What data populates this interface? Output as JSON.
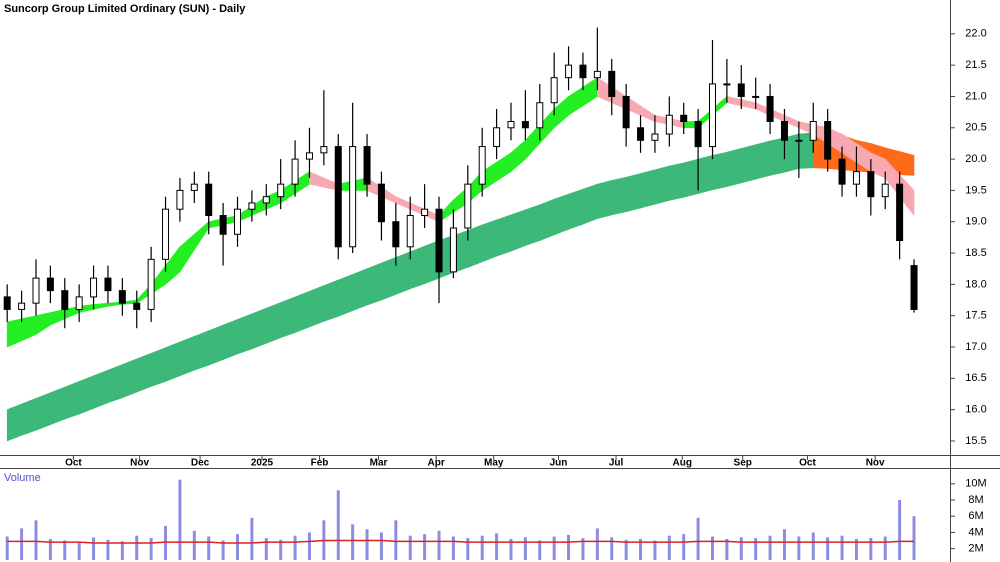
{
  "chart_data": [
    {
      "type": "candlestick",
      "title": "Suncorp Group Limited Ordinary (SUN) - Daily",
      "x": [
        0.5,
        1.5,
        2.5,
        3.5,
        4.5,
        5.5,
        6.5,
        7.5,
        8.5,
        9.5,
        10.5,
        11.5,
        12.5,
        13.5,
        14.5,
        15.5,
        16.5,
        17.5,
        18.5,
        19.5,
        20.5,
        21.5,
        22.5,
        23.5,
        24.5,
        25.5,
        26.5,
        27.5,
        28.5,
        29.5,
        30.5,
        31.5,
        32.5,
        33.5,
        34.5,
        35.5,
        36.5,
        37.5,
        38.5,
        39.5,
        40.5,
        41.5,
        42.5,
        43.5,
        44.5,
        45.5,
        46.5,
        47.5,
        48.5,
        49.5,
        50.5,
        51.5,
        52.5,
        53.5,
        54.5,
        55.5,
        56.5,
        57.5,
        58.5,
        59.5,
        60.5,
        61.5,
        62.5,
        63.5
      ],
      "open": [
        17.8,
        17.6,
        17.7,
        18.1,
        17.9,
        17.6,
        17.8,
        18.1,
        17.9,
        17.7,
        17.6,
        18.4,
        19.2,
        19.5,
        19.6,
        19.1,
        18.8,
        19.2,
        19.3,
        19.4,
        19.6,
        20.0,
        20.1,
        20.2,
        18.6,
        20.2,
        19.6,
        19.0,
        18.6,
        19.1,
        19.2,
        18.2,
        18.9,
        19.6,
        20.2,
        20.5,
        20.6,
        20.5,
        20.9,
        21.3,
        21.5,
        21.3,
        21.4,
        21.0,
        20.5,
        20.3,
        20.4,
        20.7,
        20.6,
        20.2,
        21.2,
        21.2,
        21.0,
        21.0,
        20.6,
        20.3,
        20.3,
        20.6,
        20.0,
        19.6,
        19.8,
        19.4,
        19.6,
        18.3
      ],
      "high": [
        18.0,
        17.9,
        18.4,
        18.3,
        18.1,
        18.0,
        18.3,
        18.3,
        18.1,
        17.9,
        18.6,
        19.4,
        19.7,
        19.8,
        19.8,
        19.3,
        19.4,
        19.5,
        19.6,
        20.0,
        20.3,
        20.5,
        21.1,
        20.4,
        20.9,
        20.4,
        19.8,
        19.3,
        19.4,
        19.6,
        19.4,
        19.2,
        19.9,
        20.5,
        20.8,
        20.9,
        21.1,
        21.2,
        21.7,
        21.8,
        21.7,
        22.1,
        21.6,
        21.2,
        20.7,
        20.7,
        21.0,
        20.9,
        20.8,
        21.9,
        21.6,
        21.5,
        21.3,
        21.2,
        20.8,
        20.6,
        20.9,
        20.8,
        20.2,
        20.2,
        20.0,
        19.8,
        19.8,
        18.4
      ],
      "low": [
        17.4,
        17.4,
        17.5,
        17.7,
        17.3,
        17.4,
        17.6,
        17.7,
        17.5,
        17.3,
        17.4,
        18.2,
        19.0,
        19.3,
        18.8,
        18.3,
        18.6,
        19.0,
        19.1,
        19.2,
        19.4,
        19.7,
        19.9,
        18.4,
        18.5,
        19.4,
        18.7,
        18.3,
        18.4,
        18.9,
        17.7,
        18.1,
        18.7,
        19.4,
        20.0,
        20.3,
        20.3,
        20.3,
        20.7,
        21.1,
        21.1,
        21.1,
        20.7,
        20.2,
        20.1,
        20.1,
        20.2,
        20.4,
        19.5,
        20.0,
        20.9,
        20.8,
        20.8,
        20.4,
        20.0,
        19.7,
        20.1,
        19.8,
        19.4,
        19.4,
        19.1,
        19.2,
        18.4,
        17.55
      ],
      "close": [
        17.6,
        17.7,
        18.1,
        17.9,
        17.6,
        17.8,
        18.1,
        17.9,
        17.7,
        17.6,
        18.4,
        19.2,
        19.5,
        19.6,
        19.1,
        18.8,
        19.2,
        19.3,
        19.4,
        19.6,
        20.0,
        20.1,
        20.2,
        18.6,
        20.2,
        19.6,
        19.0,
        18.6,
        19.1,
        19.2,
        18.2,
        18.9,
        19.6,
        20.2,
        20.5,
        20.6,
        20.5,
        20.9,
        21.3,
        21.5,
        21.3,
        21.4,
        21.0,
        20.5,
        20.3,
        20.4,
        20.7,
        20.6,
        20.2,
        21.2,
        21.2,
        21.0,
        21.0,
        20.6,
        20.3,
        20.3,
        20.6,
        20.0,
        19.6,
        19.8,
        19.4,
        19.6,
        18.7,
        17.6
      ],
      "up_color": "#ffffff",
      "down_color": "#000000",
      "bands": [
        {
          "color": "#3cb878",
          "falling_color": "#ff6a1a",
          "upper": [
            16.0,
            16.09,
            16.18,
            16.27,
            16.36,
            16.45,
            16.54,
            16.63,
            16.72,
            16.81,
            16.9,
            16.99,
            17.08,
            17.17,
            17.26,
            17.35,
            17.44,
            17.53,
            17.62,
            17.71,
            17.8,
            17.89,
            17.98,
            18.07,
            18.16,
            18.25,
            18.34,
            18.43,
            18.52,
            18.61,
            18.7,
            18.78,
            18.86,
            18.95,
            19.03,
            19.11,
            19.19,
            19.27,
            19.36,
            19.44,
            19.52,
            19.6,
            19.66,
            19.71,
            19.77,
            19.83,
            19.89,
            19.94,
            20.0,
            20.06,
            20.11,
            20.17,
            20.23,
            20.29,
            20.34,
            20.4,
            20.42,
            20.42,
            20.38,
            20.3,
            20.25,
            20.18,
            20.12,
            20.06
          ],
          "lower": [
            15.5,
            15.59,
            15.67,
            15.76,
            15.85,
            15.93,
            16.02,
            16.11,
            16.19,
            16.28,
            16.37,
            16.45,
            16.54,
            16.63,
            16.71,
            16.8,
            16.89,
            16.97,
            17.06,
            17.15,
            17.23,
            17.32,
            17.41,
            17.49,
            17.58,
            17.67,
            17.75,
            17.84,
            17.93,
            18.01,
            18.1,
            18.19,
            18.27,
            18.36,
            18.45,
            18.53,
            18.62,
            18.7,
            18.79,
            18.88,
            18.96,
            19.05,
            19.11,
            19.16,
            19.22,
            19.28,
            19.34,
            19.39,
            19.45,
            19.51,
            19.56,
            19.62,
            19.68,
            19.74,
            19.79,
            19.85,
            19.86,
            19.85,
            19.83,
            19.81,
            19.79,
            19.77,
            19.75,
            19.74
          ]
        },
        {
          "color": "#22ee22",
          "falling_color": "#f8a8b0",
          "upper": [
            17.4,
            17.45,
            17.5,
            17.55,
            17.6,
            17.65,
            17.68,
            17.7,
            17.72,
            17.75,
            18.0,
            18.3,
            18.6,
            18.8,
            19.0,
            19.05,
            19.1,
            19.25,
            19.4,
            19.5,
            19.65,
            19.8,
            19.7,
            19.6,
            19.65,
            19.7,
            19.55,
            19.4,
            19.3,
            19.2,
            19.1,
            19.35,
            19.55,
            19.8,
            19.95,
            20.1,
            20.3,
            20.55,
            20.8,
            21.0,
            21.15,
            21.3,
            21.15,
            21.0,
            20.85,
            20.7,
            20.65,
            20.6,
            20.6,
            20.8,
            21.0,
            20.95,
            20.9,
            20.8,
            20.7,
            20.6,
            20.55,
            20.5,
            20.4,
            20.25,
            20.1,
            20.0,
            19.75,
            19.5
          ],
          "lower": [
            17.0,
            17.1,
            17.2,
            17.35,
            17.45,
            17.55,
            17.6,
            17.65,
            17.68,
            17.7,
            17.85,
            18.0,
            18.2,
            18.55,
            18.9,
            18.95,
            19.0,
            19.1,
            19.2,
            19.3,
            19.45,
            19.6,
            19.55,
            19.5,
            19.5,
            19.5,
            19.4,
            19.3,
            19.2,
            19.1,
            19.0,
            19.15,
            19.3,
            19.5,
            19.65,
            19.8,
            20.0,
            20.25,
            20.5,
            20.7,
            20.85,
            21.0,
            20.9,
            20.8,
            20.7,
            20.6,
            20.55,
            20.5,
            20.5,
            20.7,
            20.9,
            20.85,
            20.8,
            20.7,
            20.6,
            20.5,
            20.4,
            20.25,
            20.1,
            19.95,
            19.8,
            19.7,
            19.4,
            19.1
          ]
        }
      ],
      "xlim": [
        0,
        66
      ],
      "xticks": [
        {
          "value": 5.1,
          "label": "Oct"
        },
        {
          "value": 9.7,
          "label": "Nov"
        },
        {
          "value": 13.9,
          "label": "Dec"
        },
        {
          "value": 18.2,
          "label": "2025"
        },
        {
          "value": 22.2,
          "label": "Feb"
        },
        {
          "value": 26.3,
          "label": "Mar"
        },
        {
          "value": 30.3,
          "label": "Apr"
        },
        {
          "value": 34.3,
          "label": "May"
        },
        {
          "value": 38.8,
          "label": "Jun"
        },
        {
          "value": 42.8,
          "label": "Jul"
        },
        {
          "value": 47.4,
          "label": "Aug"
        },
        {
          "value": 51.6,
          "label": "Sep"
        },
        {
          "value": 56.1,
          "label": "Oct"
        },
        {
          "value": 60.8,
          "label": "Nov"
        }
      ],
      "ylim": [
        15.26,
        22.54
      ],
      "yticks": [
        15.5,
        {
          "value": 16,
          "label": "16.0"
        },
        16.5,
        {
          "value": 17,
          "label": "17.0"
        },
        17.5,
        {
          "value": 18,
          "label": "18.0"
        },
        18.5,
        {
          "value": 19,
          "label": "19.0"
        },
        19.5,
        {
          "value": 20,
          "label": "20.0"
        },
        20.5,
        {
          "value": 21,
          "label": "21.0"
        },
        21.5,
        {
          "value": 22,
          "label": "22.0"
        }
      ]
    },
    {
      "type": "bar",
      "title": "Volume",
      "x": [
        0.5,
        1.5,
        2.5,
        3.5,
        4.5,
        5.5,
        6.5,
        7.5,
        8.5,
        9.5,
        10.5,
        11.5,
        12.5,
        13.5,
        14.5,
        15.5,
        16.5,
        17.5,
        18.5,
        19.5,
        20.5,
        21.5,
        22.5,
        23.5,
        24.5,
        25.5,
        26.5,
        27.5,
        28.5,
        29.5,
        30.5,
        31.5,
        32.5,
        33.5,
        34.5,
        35.5,
        36.5,
        37.5,
        38.5,
        39.5,
        40.5,
        41.5,
        42.5,
        43.5,
        44.5,
        45.5,
        46.5,
        47.5,
        48.5,
        49.5,
        50.5,
        51.5,
        52.5,
        53.5,
        54.5,
        55.5,
        56.5,
        57.5,
        58.5,
        59.5,
        60.5,
        61.5,
        62.5,
        63.5
      ],
      "series": [
        {
          "color": "#8c8ce0",
          "values": [
            3.5,
            4.5,
            5.5,
            3.2,
            3.0,
            2.8,
            3.4,
            3.1,
            2.9,
            3.6,
            3.3,
            4.8,
            10.5,
            4.2,
            3.5,
            3.0,
            3.8,
            5.8,
            3.3,
            3.1,
            3.6,
            4.0,
            5.5,
            9.2,
            5.0,
            4.4,
            4.0,
            5.5,
            3.6,
            3.8,
            4.2,
            3.5,
            3.3,
            3.6,
            3.9,
            3.2,
            3.4,
            3.0,
            3.5,
            3.7,
            3.3,
            4.5,
            3.4,
            3.1,
            3.2,
            3.0,
            3.6,
            3.8,
            5.8,
            3.5,
            3.2,
            3.4,
            3.3,
            3.6,
            4.4,
            3.5,
            4.0,
            3.4,
            3.6,
            3.2,
            3.3,
            3.5,
            8.0,
            6.0
          ]
        },
        {
          "color": "#e02020",
          "values": [
            2.9,
            2.9,
            2.9,
            2.8,
            2.8,
            2.8,
            2.7,
            2.7,
            2.7,
            2.7,
            2.7,
            2.8,
            2.8,
            2.8,
            2.8,
            2.7,
            2.7,
            2.7,
            2.8,
            2.8,
            2.8,
            2.9,
            3.0,
            3.0,
            3.0,
            3.0,
            3.0,
            2.9,
            2.9,
            2.9,
            2.9,
            2.9,
            2.8,
            2.8,
            2.8,
            2.8,
            2.8,
            2.8,
            2.8,
            2.8,
            2.9,
            2.9,
            2.9,
            2.8,
            2.8,
            2.8,
            2.8,
            2.8,
            2.9,
            2.9,
            2.9,
            2.8,
            2.8,
            2.8,
            2.8,
            2.8,
            2.8,
            2.8,
            2.8,
            2.8,
            2.8,
            2.8,
            2.9,
            2.9
          ]
        }
      ],
      "xlim": [
        0,
        66
      ],
      "ylim": [
        0.6,
        11.7
      ],
      "yticks": [
        {
          "value": 2,
          "label": "2M"
        },
        {
          "value": 4,
          "label": "4M"
        },
        {
          "value": 6,
          "label": "6M"
        },
        {
          "value": 8,
          "label": "8M"
        },
        {
          "value": 10,
          "label": "10M"
        }
      ]
    }
  ]
}
